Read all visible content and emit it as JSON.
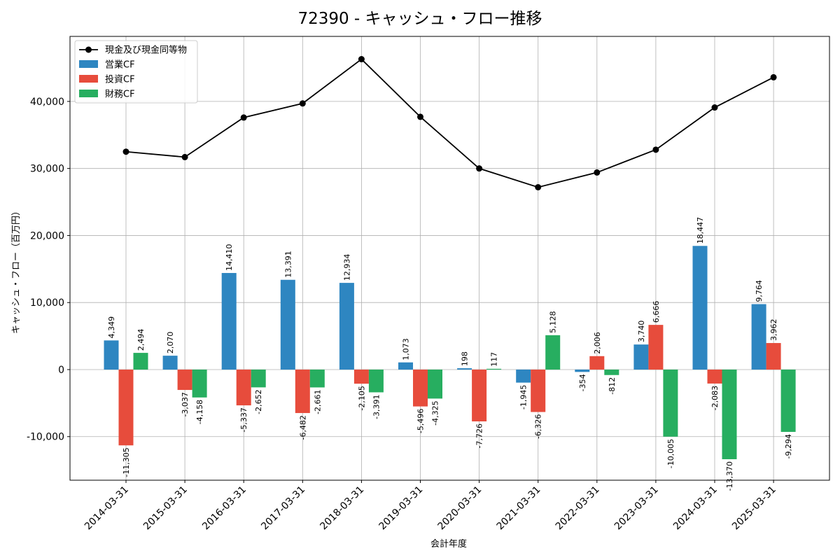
{
  "chart_data": {
    "type": "bar",
    "title": "72390 - キャッシュ・フロー推移",
    "xlabel": "会計年度",
    "ylabel": "キャッシュ・フロー（百万円）",
    "ylim": [
      -16500,
      49700
    ],
    "yticks": [
      -10000,
      0,
      10000,
      20000,
      30000,
      40000
    ],
    "ytick_labels": [
      "-10,000",
      "0",
      "10,000",
      "20,000",
      "30,000",
      "40,000"
    ],
    "grid": true,
    "legend_position": "top-left",
    "categories": [
      "2014-03-31",
      "2015-03-31",
      "2016-03-31",
      "2017-03-31",
      "2018-03-31",
      "2019-03-31",
      "2020-03-31",
      "2021-03-31",
      "2022-03-31",
      "2023-03-31",
      "2024-03-31",
      "2025-03-31"
    ],
    "line": {
      "name": "現金及び現金同等物",
      "color": "#000000",
      "values": [
        32500,
        31700,
        37600,
        39700,
        46300,
        37700,
        30000,
        27200,
        29400,
        32800,
        39100,
        43600
      ]
    },
    "series": [
      {
        "name": "営業CF",
        "color": "#2e86c1",
        "values": [
          4349,
          2070,
          14410,
          13391,
          12934,
          1073,
          198,
          -1945,
          -354,
          3740,
          18447,
          9764
        ],
        "labels": [
          "4,349",
          "2,070",
          "14,410",
          "13,391",
          "12,934",
          "1,073",
          "198",
          "-1,945",
          "-354",
          "3,740",
          "18,447",
          "9,764"
        ]
      },
      {
        "name": "投資CF",
        "color": "#e74c3c",
        "values": [
          -11305,
          -3037,
          -5337,
          -6482,
          -2105,
          -5496,
          -7726,
          -6326,
          2006,
          6666,
          -2083,
          3962
        ],
        "labels": [
          "-11,305",
          "-3,037",
          "-5,337",
          "-6,482",
          "-2,105",
          "-5,496",
          "-7,726",
          "-6,326",
          "2,006",
          "6,666",
          "-2,083",
          "3,962"
        ]
      },
      {
        "name": "財務CF",
        "color": "#27ae60",
        "values": [
          2494,
          -4158,
          -2652,
          -2661,
          -3391,
          -4325,
          117,
          5128,
          -812,
          -10005,
          -13370,
          -9294
        ],
        "labels": [
          "2,494",
          "-4,158",
          "-2,652",
          "-2,661",
          "-3,391",
          "-4,325",
          "117",
          "5,128",
          "-812",
          "-10,005",
          "-13,370",
          "-9,294"
        ]
      }
    ]
  }
}
